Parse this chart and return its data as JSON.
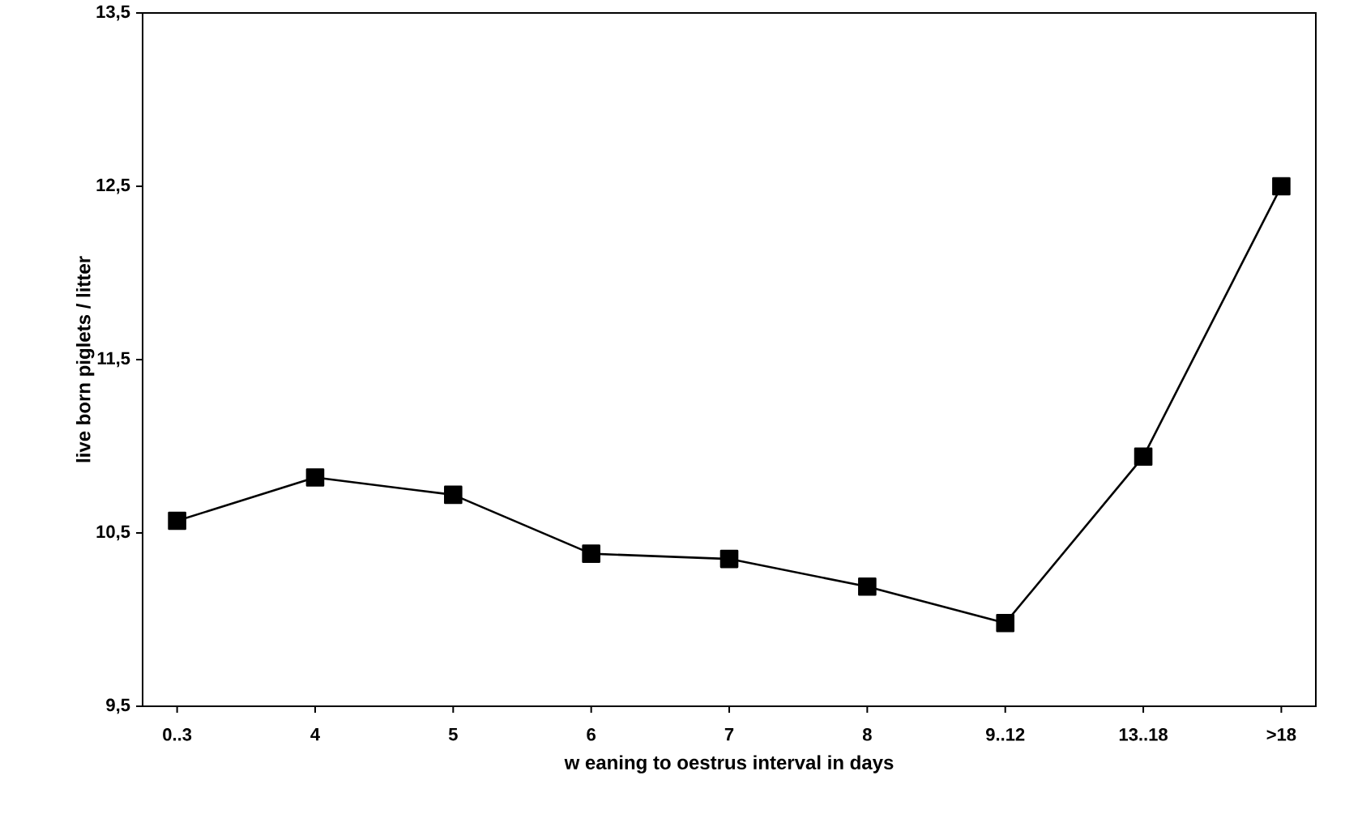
{
  "chart_data": {
    "type": "line",
    "xlabel": "w eaning to oestrus interval in days",
    "ylabel": "live born piglets / litter",
    "categories": [
      "0..3",
      "4",
      "5",
      "6",
      "7",
      "8",
      "9..12",
      "13..18",
      ">18"
    ],
    "series": [
      {
        "color": "#000000",
        "values": [
          10.57,
          10.82,
          10.72,
          10.38,
          10.35,
          10.19,
          9.98,
          10.94,
          12.5
        ]
      }
    ],
    "ylim": [
      9.5,
      13.5
    ],
    "yticks": [
      {
        "value": 9.5,
        "label": "9,5"
      },
      {
        "value": 10.5,
        "label": "10,5"
      },
      {
        "value": 11.5,
        "label": "11,5"
      },
      {
        "value": 12.5,
        "label": "12,5"
      },
      {
        "value": 13.5,
        "label": "13,5"
      }
    ],
    "marker": "square",
    "line_style": "solid",
    "grid": false
  }
}
